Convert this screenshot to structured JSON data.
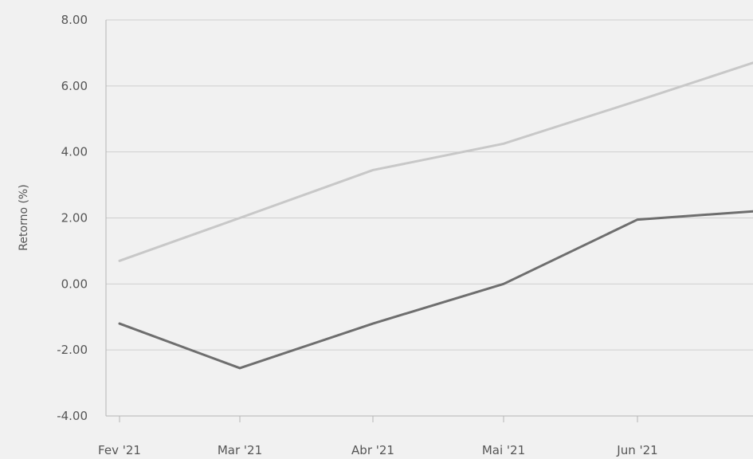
{
  "chart_data": {
    "type": "line",
    "title": "",
    "xlabel": "",
    "ylabel": "Retorno (%)",
    "categories": [
      "Fev '21",
      "Mar '21",
      "Abr '21",
      "Mai '21",
      "Jun '21"
    ],
    "x": [
      0,
      1,
      2,
      3,
      4,
      5
    ],
    "ylim": [
      -4,
      8
    ],
    "yticks": [
      8.0,
      6.0,
      4.0,
      2.0,
      0.0,
      -2.0,
      -4.0
    ],
    "ytick_labels": [
      "8.00",
      "6.00",
      "4.00",
      "2.00",
      "0.00",
      "-2.00",
      "-4.00"
    ],
    "grid": true,
    "legend": "none",
    "series": [
      {
        "values": [
          0.7,
          2.0,
          3.45,
          4.25,
          5.55,
          6.7
        ],
        "color": "#c8c8c8"
      },
      {
        "values": [
          -1.2,
          -2.55,
          -1.2,
          0.0,
          1.95,
          2.2
        ],
        "color": "#6e6e6e"
      }
    ]
  }
}
